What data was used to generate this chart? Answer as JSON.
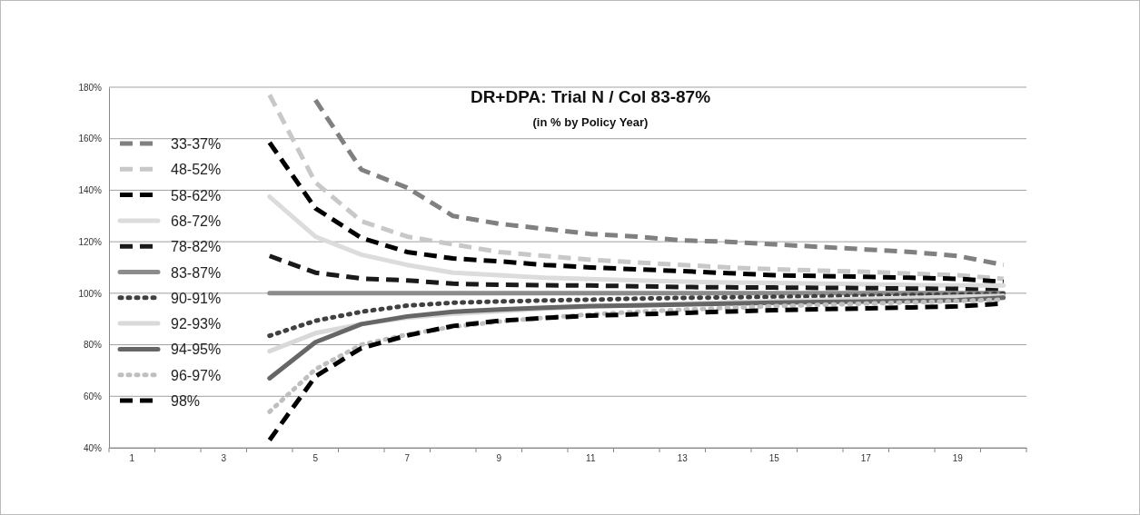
{
  "chart_data": {
    "type": "line",
    "title": "DR+DPA:   Trial N /  Col 83-87%",
    "subtitle": "(in % by Policy Year)",
    "categories": [
      "1",
      null,
      "3",
      null,
      "5",
      null,
      "7",
      null,
      "9",
      null,
      "11",
      null,
      "13",
      null,
      "15",
      null,
      "17",
      null,
      "19",
      null
    ],
    "ylim": [
      40,
      180
    ],
    "yticks": [
      {
        "value": 40,
        "label": "40%"
      },
      {
        "value": 60,
        "label": "60%"
      },
      {
        "value": 80,
        "label": "80%"
      },
      {
        "value": 100,
        "label": "100%"
      },
      {
        "value": 120,
        "label": "120%"
      },
      {
        "value": 140,
        "label": "140%"
      },
      {
        "value": 160,
        "label": "160%"
      },
      {
        "value": 180,
        "label": "180%"
      }
    ],
    "grid": "y",
    "legend": "left",
    "series": [
      {
        "name": "33-37%",
        "color": "#808080",
        "line_style": "dashed",
        "values": [
          null,
          null,
          null,
          null,
          175,
          148,
          141,
          130,
          127,
          125,
          123,
          122,
          120.5,
          120,
          119,
          118,
          117,
          116,
          114.5,
          111
        ]
      },
      {
        "name": "48-52%",
        "color": "#c8c8c8",
        "line_style": "dashed",
        "values": [
          null,
          null,
          null,
          177,
          143,
          128,
          122,
          119,
          116,
          114.5,
          113,
          112,
          111,
          110,
          109.3,
          108.8,
          108.3,
          107.6,
          107,
          105.6
        ]
      },
      {
        "name": "58-62%",
        "color": "#000000",
        "line_style": "dashed",
        "values": [
          null,
          null,
          null,
          158.5,
          133,
          121.5,
          116,
          113.5,
          112.4,
          111,
          110,
          109.3,
          108.6,
          107.8,
          107,
          106.7,
          106.4,
          106,
          105.6,
          104.4
        ]
      },
      {
        "name": "68-72%",
        "color": "#dcdcdc",
        "line_style": "solid",
        "values": [
          null,
          null,
          null,
          137.5,
          122,
          115,
          111,
          108,
          107,
          106,
          105.5,
          105,
          104.5,
          104.2,
          104,
          103.7,
          103.5,
          103.2,
          103,
          103
        ]
      },
      {
        "name": "78-82%",
        "color": "#1a1a1a",
        "line_style": "dashed",
        "values": [
          null,
          null,
          null,
          114.5,
          108,
          105.7,
          105,
          103.7,
          103.3,
          103.1,
          103,
          102.7,
          102.4,
          102.3,
          102.2,
          102.1,
          102,
          101.8,
          101.7,
          101
        ]
      },
      {
        "name": "83-87%",
        "color": "#8c8c8c",
        "line_style": "solid",
        "values": [
          null,
          null,
          null,
          100,
          100,
          100,
          100,
          100,
          100,
          100,
          100,
          100,
          100,
          100,
          100,
          100,
          100,
          100,
          100,
          100
        ]
      },
      {
        "name": "90-91%",
        "color": "#404040",
        "line_style": "dotted",
        "values": [
          null,
          null,
          null,
          83.5,
          89.3,
          92.8,
          95.2,
          96.3,
          96.8,
          97.2,
          97.5,
          97.9,
          98.2,
          98.4,
          98.6,
          98.8,
          99,
          99.3,
          99.5,
          99.8
        ]
      },
      {
        "name": "92-93%",
        "color": "#d9d9d9",
        "line_style": "solid",
        "values": [
          null,
          null,
          null,
          77.5,
          84.5,
          88,
          90.5,
          92,
          93,
          94,
          94.8,
          95.4,
          96,
          96.5,
          97,
          97.4,
          97.8,
          98.2,
          98.6,
          99
        ]
      },
      {
        "name": "94-95%",
        "color": "#666666",
        "line_style": "solid",
        "values": [
          null,
          null,
          null,
          67,
          81,
          88,
          91,
          92.8,
          93.7,
          94.4,
          95,
          95.3,
          95.6,
          96,
          96.3,
          96.6,
          96.8,
          97,
          97.3,
          98.3
        ]
      },
      {
        "name": "96-97%",
        "color": "#bfbfbf",
        "line_style": "dotted",
        "values": [
          null,
          null,
          null,
          54,
          70.5,
          80,
          84,
          87,
          89,
          90.5,
          91.8,
          92.8,
          93.6,
          94.3,
          95,
          95.5,
          96,
          96.5,
          97,
          97.5
        ]
      },
      {
        "name": "98%",
        "color": "#000000",
        "line_style": "dashed",
        "values": [
          null,
          null,
          null,
          43,
          67.7,
          78.7,
          83.6,
          87.3,
          89.3,
          90.4,
          91.3,
          91.8,
          92.3,
          92.9,
          93.4,
          93.8,
          94.1,
          94.5,
          94.9,
          96
        ]
      }
    ]
  }
}
